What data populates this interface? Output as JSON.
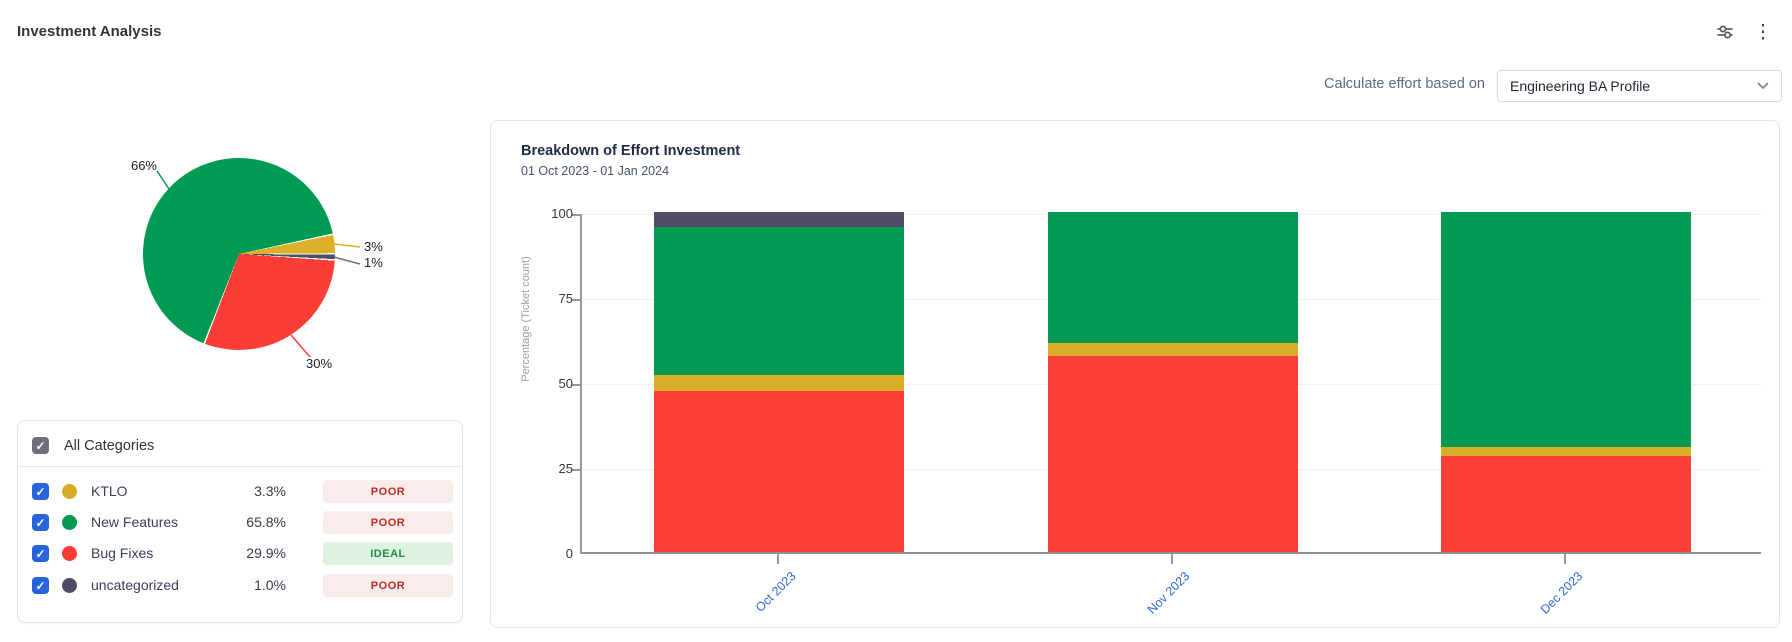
{
  "page": {
    "title": "Investment Analysis"
  },
  "header": {
    "icons": [
      {
        "name": "filter-sliders-icon"
      },
      {
        "name": "kebab-menu-icon",
        "glyph": "⋮"
      }
    ]
  },
  "controls": {
    "label": "Calculate effort based on",
    "selected_profile": "Engineering BA Profile"
  },
  "categories": {
    "header": {
      "label": "All Categories",
      "checked": true
    },
    "rows": [
      {
        "label": "KTLO",
        "pct": "3.3%",
        "badge": "POOR",
        "variant": "poor",
        "color": "#d9a928",
        "checked": true
      },
      {
        "label": "New Features",
        "pct": "65.8%",
        "badge": "POOR",
        "variant": "poor",
        "color": "#009a52",
        "checked": true
      },
      {
        "label": "Bug Fixes",
        "pct": "29.9%",
        "badge": "IDEAL",
        "variant": "ideal",
        "color": "#fb3b35",
        "checked": true
      },
      {
        "label": "uncategorized",
        "pct": "1.0%",
        "badge": "POOR",
        "variant": "poor",
        "color": "#4d4d63",
        "checked": true
      }
    ]
  },
  "chart_data": [
    {
      "type": "pie",
      "start_angle": 201.2,
      "slices": [
        {
          "label": "New Features",
          "value": 65.8,
          "display": "66%",
          "color": "#009a52"
        },
        {
          "label": "KTLO",
          "value": 3.3,
          "display": "3%",
          "color": "#ddb02a"
        },
        {
          "label": "uncategorized",
          "value": 1.0,
          "display": "1%",
          "color": "#4d4d68"
        },
        {
          "label": "Bug Fixes",
          "value": 29.9,
          "display": "30%",
          "color": "#fa3e37"
        }
      ]
    },
    {
      "type": "bar",
      "stacked": true,
      "title": "Breakdown of Effort Investment",
      "subtitle": "01 Oct 2023 - 01 Jan 2024",
      "categories": [
        "Oct 2023",
        "Nov 2023",
        "Dec 2023"
      ],
      "series": [
        {
          "name": "Bug Fixes",
          "color": "#fc3e38",
          "values": [
            47.4,
            57.6,
            28.2
          ]
        },
        {
          "name": "KTLO",
          "color": "#d9ac29",
          "values": [
            4.7,
            3.9,
            2.7
          ]
        },
        {
          "name": "New Features",
          "color": "#009a52",
          "values": [
            43.5,
            38.5,
            69.1
          ]
        },
        {
          "name": "uncategorized",
          "color": "#4d4d68",
          "values": [
            4.4,
            0,
            0
          ]
        }
      ],
      "ylabel": "Percentage (Ticket count)",
      "yticks": [
        0,
        25,
        50,
        75,
        100
      ],
      "ylim": [
        0,
        100
      ],
      "grid": true,
      "legend": "none"
    }
  ]
}
